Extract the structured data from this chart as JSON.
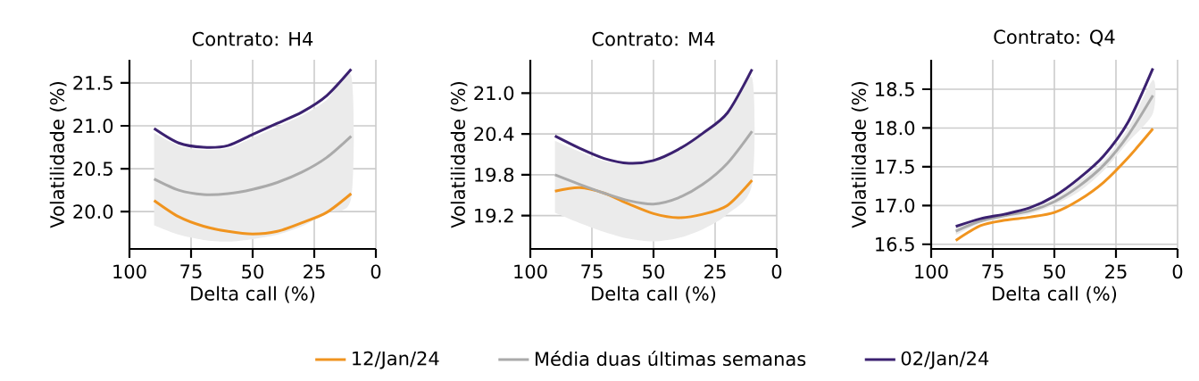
{
  "chart_data": [
    {
      "type": "line",
      "title": "Contrato: H4",
      "xlabel": "Delta call (%)",
      "ylabel": "Volatilidade (%)",
      "xlim": [
        100,
        0
      ],
      "xticks": [
        100,
        75,
        50,
        25,
        0
      ],
      "ylim": [
        19.565,
        21.77
      ],
      "yticks": [
        {
          "value": 20,
          "label": "20.0"
        },
        20.5,
        {
          "value": 21,
          "label": "21.0"
        },
        21.5
      ],
      "grid": true,
      "marker": "none",
      "line_style": "solid",
      "legend": false,
      "x": [
        90,
        80,
        70,
        60,
        50,
        40,
        30,
        20,
        10
      ],
      "series": [
        {
          "color": "#f0941f",
          "values": [
            20.13,
            19.94,
            19.83,
            19.77,
            19.74,
            19.77,
            19.87,
            19.99,
            20.21
          ]
        },
        {
          "color": "#aaaaaa",
          "values": [
            20.38,
            20.25,
            20.2,
            20.21,
            20.26,
            20.34,
            20.46,
            20.63,
            20.88
          ],
          "lower": [
            19.84,
            19.73,
            19.67,
            19.65,
            19.68,
            19.73,
            19.83,
            19.99,
            20.16
          ],
          "upper": [
            20.92,
            20.77,
            20.72,
            20.74,
            20.86,
            20.99,
            21.12,
            21.3,
            21.58
          ]
        },
        {
          "color": "#3b2170",
          "values": [
            20.97,
            20.8,
            20.75,
            20.77,
            20.9,
            21.03,
            21.16,
            21.35,
            21.66
          ]
        }
      ]
    },
    {
      "type": "line",
      "title": "Contrato: M4",
      "xlabel": "Delta call (%)",
      "ylabel": "Volatilidade (%)",
      "xlim": [
        100,
        0
      ],
      "xticks": [
        100,
        75,
        50,
        25,
        0
      ],
      "ylim": [
        18.71,
        21.49
      ],
      "yticks": [
        19.2,
        19.8,
        20.4,
        {
          "value": 21,
          "label": "21.0"
        }
      ],
      "grid": true,
      "marker": "none",
      "line_style": "solid",
      "legend": "bottom",
      "x": [
        90,
        80,
        70,
        60,
        50,
        40,
        30,
        20,
        10
      ],
      "series": [
        {
          "name": "12/Jan/24",
          "color": "#f0941f",
          "values": [
            19.56,
            19.61,
            19.53,
            19.37,
            19.23,
            19.17,
            19.22,
            19.35,
            19.72
          ]
        },
        {
          "name": "Média duas últimas semanas",
          "color": "#aaaaaa",
          "values": [
            19.8,
            19.66,
            19.53,
            19.42,
            19.37,
            19.46,
            19.66,
            19.97,
            20.44
          ],
          "lower": [
            19.24,
            19.09,
            18.96,
            18.86,
            18.82,
            18.87,
            19.0,
            19.22,
            19.66
          ],
          "upper": [
            20.3,
            20.14,
            20.0,
            19.95,
            20.0,
            20.14,
            20.39,
            20.69,
            21.22
          ]
        },
        {
          "name": "02/Jan/24",
          "color": "#3b2170",
          "values": [
            20.37,
            20.19,
            20.04,
            19.97,
            20.01,
            20.17,
            20.41,
            20.71,
            21.35
          ]
        }
      ]
    },
    {
      "type": "line",
      "title": "Contrato: Q4",
      "xlabel": "Delta call (%)",
      "ylabel": "Volatilidade (%)",
      "xlim": [
        100,
        0
      ],
      "xticks": [
        100,
        75,
        50,
        25,
        0
      ],
      "ylim": [
        16.44,
        18.88
      ],
      "yticks": [
        16.5,
        {
          "value": 17,
          "label": "17.0"
        },
        17.5,
        {
          "value": 18,
          "label": "18.0"
        },
        18.5
      ],
      "grid": true,
      "marker": "none",
      "line_style": "solid",
      "legend": false,
      "x": [
        90,
        80,
        70,
        60,
        50,
        40,
        30,
        20,
        10
      ],
      "series": [
        {
          "color": "#f0941f",
          "values": [
            16.55,
            16.74,
            16.81,
            16.85,
            16.91,
            17.07,
            17.3,
            17.62,
            17.99
          ]
        },
        {
          "color": "#aaaaaa",
          "values": [
            16.67,
            16.8,
            16.87,
            16.93,
            17.05,
            17.25,
            17.52,
            17.91,
            18.42
          ],
          "lower": [
            16.62,
            16.77,
            16.84,
            16.89,
            17.01,
            17.18,
            17.45,
            17.82,
            18.19
          ],
          "upper": [
            16.72,
            16.82,
            16.88,
            16.95,
            17.09,
            17.32,
            17.58,
            18.0,
            18.62
          ]
        },
        {
          "color": "#3b2170",
          "values": [
            16.73,
            16.83,
            16.89,
            16.97,
            17.12,
            17.35,
            17.64,
            18.08,
            18.77
          ]
        }
      ]
    }
  ]
}
